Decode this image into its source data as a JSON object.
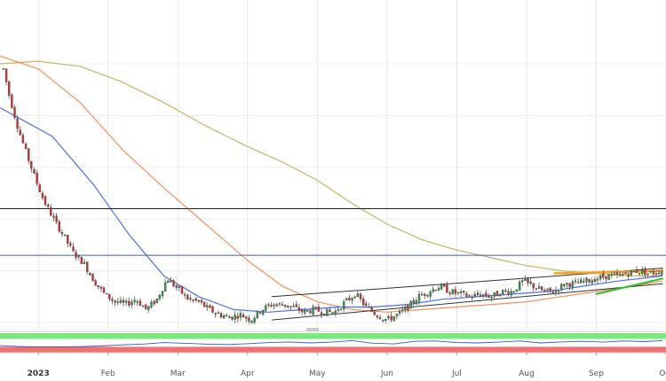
{
  "chart_data": {
    "type": "candlestick",
    "title": "",
    "xlabel": "",
    "ylabel": "",
    "x_tick_labels": [
      {
        "label": "2023",
        "month": 0,
        "bold": true
      },
      {
        "label": "Feb",
        "month": 1
      },
      {
        "label": "Mar",
        "month": 2
      },
      {
        "label": "Apr",
        "month": 3
      },
      {
        "label": "May",
        "month": 4
      },
      {
        "label": "Jun",
        "month": 5
      },
      {
        "label": "Jul",
        "month": 6
      },
      {
        "label": "Aug",
        "month": 7
      },
      {
        "label": "Sep",
        "month": 8
      },
      {
        "label": "Oct",
        "month": 9
      }
    ],
    "x_range_months": [
      -0.55,
      9.0
    ],
    "y_range": [
      0,
      100
    ],
    "grid": true,
    "colors": {
      "up": "#2f9e44",
      "down": "#d63031",
      "sma_fast": "#4a6fe3",
      "sma_mid": "#f0905a",
      "sma_slow": "#c4b560",
      "hline_black": "#222222",
      "hline_blue": "#3c5ea8",
      "trend_black": "#333333",
      "trend_orange": "#ff9f1c",
      "trend_green": "#2fbf2f",
      "rsi_line": "#3355cc",
      "overbought_band": "#7be87b",
      "oversold_band": "#f07070"
    },
    "price_path": [
      [
        -0.5,
        98
      ],
      [
        -0.42,
        88
      ],
      [
        -0.3,
        76
      ],
      [
        -0.18,
        66
      ],
      [
        -0.05,
        56
      ],
      [
        0.08,
        47
      ],
      [
        0.22,
        40
      ],
      [
        0.35,
        34
      ],
      [
        0.5,
        27
      ],
      [
        0.65,
        23
      ],
      [
        0.8,
        16
      ],
      [
        0.95,
        11
      ],
      [
        1.1,
        8
      ],
      [
        1.25,
        7
      ],
      [
        1.4,
        9
      ],
      [
        1.55,
        5
      ],
      [
        1.7,
        9
      ],
      [
        1.85,
        17
      ],
      [
        2.0,
        13
      ],
      [
        2.15,
        9
      ],
      [
        2.3,
        8
      ],
      [
        2.45,
        5
      ],
      [
        2.6,
        3
      ],
      [
        2.75,
        2
      ],
      [
        2.9,
        3
      ],
      [
        3.05,
        1
      ],
      [
        3.2,
        5
      ],
      [
        3.35,
        7
      ],
      [
        3.5,
        7
      ],
      [
        3.65,
        6
      ],
      [
        3.8,
        4
      ],
      [
        3.95,
        5
      ],
      [
        4.1,
        4
      ],
      [
        4.25,
        4
      ],
      [
        4.4,
        8
      ],
      [
        4.55,
        11
      ],
      [
        4.7,
        6
      ],
      [
        4.85,
        3
      ],
      [
        5.0,
        1
      ],
      [
        5.15,
        3
      ],
      [
        5.3,
        6
      ],
      [
        5.45,
        10
      ],
      [
        5.6,
        12
      ],
      [
        5.75,
        14
      ],
      [
        5.9,
        12
      ],
      [
        6.05,
        11
      ],
      [
        6.2,
        10
      ],
      [
        6.35,
        11
      ],
      [
        6.5,
        10
      ],
      [
        6.65,
        12
      ],
      [
        6.8,
        12
      ],
      [
        6.95,
        16
      ],
      [
        7.1,
        14
      ],
      [
        7.25,
        12
      ],
      [
        7.4,
        12
      ],
      [
        7.55,
        15
      ],
      [
        7.7,
        15
      ],
      [
        7.85,
        16
      ],
      [
        8.0,
        17
      ],
      [
        8.15,
        18
      ],
      [
        8.3,
        18
      ],
      [
        8.45,
        19
      ],
      [
        8.6,
        20
      ],
      [
        8.75,
        19
      ],
      [
        8.95,
        20
      ]
    ],
    "sma_fast": [
      [
        -0.55,
        83
      ],
      [
        0.2,
        72
      ],
      [
        0.8,
        53
      ],
      [
        1.3,
        34
      ],
      [
        1.8,
        18
      ],
      [
        2.3,
        10
      ],
      [
        2.8,
        5
      ],
      [
        3.3,
        4
      ],
      [
        3.8,
        5
      ],
      [
        4.3,
        6
      ],
      [
        4.8,
        6
      ],
      [
        5.3,
        7
      ],
      [
        5.8,
        9
      ],
      [
        6.3,
        10
      ],
      [
        6.8,
        11
      ],
      [
        7.3,
        12
      ],
      [
        7.8,
        14
      ],
      [
        8.3,
        16
      ],
      [
        8.95,
        18
      ]
    ],
    "sma_mid": [
      [
        -0.55,
        103
      ],
      [
        0,
        98
      ],
      [
        0.6,
        85
      ],
      [
        1.2,
        67
      ],
      [
        1.8,
        52
      ],
      [
        2.4,
        38
      ],
      [
        3.0,
        24
      ],
      [
        3.5,
        14
      ],
      [
        4.0,
        8
      ],
      [
        4.5,
        5
      ],
      [
        5.0,
        4
      ],
      [
        5.5,
        5
      ],
      [
        6.0,
        6
      ],
      [
        6.5,
        7
      ],
      [
        7.0,
        8
      ],
      [
        7.5,
        10
      ],
      [
        8.0,
        12
      ],
      [
        8.5,
        14
      ],
      [
        8.95,
        16
      ]
    ],
    "sma_slow": [
      [
        -0.55,
        100
      ],
      [
        0,
        101
      ],
      [
        0.6,
        99
      ],
      [
        1.2,
        93
      ],
      [
        1.8,
        85
      ],
      [
        2.4,
        76
      ],
      [
        3.0,
        68
      ],
      [
        3.5,
        62
      ],
      [
        4.0,
        55
      ],
      [
        4.5,
        46
      ],
      [
        5.0,
        38
      ],
      [
        5.5,
        32
      ],
      [
        6.0,
        28
      ],
      [
        6.5,
        25
      ],
      [
        7.0,
        22
      ],
      [
        7.5,
        20
      ],
      [
        8.0,
        19
      ],
      [
        8.5,
        18
      ],
      [
        8.95,
        18
      ]
    ],
    "horizontal_levels": [
      {
        "y": 44,
        "color_key": "hline_black"
      },
      {
        "y": 26,
        "color_key": "hline_blue"
      }
    ],
    "trend_lines": [
      {
        "points": [
          [
            3.35,
            10
          ],
          [
            8.95,
            21
          ]
        ],
        "color_key": "trend_black",
        "width": 1
      },
      {
        "points": [
          [
            3.35,
            1
          ],
          [
            8.95,
            15
          ]
        ],
        "color_key": "trend_black",
        "width": 1
      },
      {
        "points": [
          [
            7.4,
            19
          ],
          [
            8.95,
            20
          ]
        ],
        "color_key": "trend_orange",
        "width": 2.5
      },
      {
        "points": [
          [
            8.0,
            11
          ],
          [
            8.95,
            17
          ]
        ],
        "color_key": "trend_green",
        "width": 2
      }
    ],
    "rsi": {
      "range": [
        0,
        100
      ],
      "overbought_band": [
        70,
        100
      ],
      "oversold_band": [
        0,
        30
      ],
      "values": [
        [
          -0.55,
          36
        ],
        [
          -0.4,
          33
        ],
        [
          -0.2,
          31
        ],
        [
          0,
          30
        ],
        [
          0.3,
          30
        ],
        [
          0.6,
          31
        ],
        [
          0.9,
          34
        ],
        [
          1.2,
          40
        ],
        [
          1.5,
          44
        ],
        [
          1.8,
          52
        ],
        [
          2.1,
          48
        ],
        [
          2.4,
          44
        ],
        [
          2.7,
          42
        ],
        [
          3.0,
          46
        ],
        [
          3.3,
          52
        ],
        [
          3.6,
          55
        ],
        [
          3.9,
          50
        ],
        [
          4.2,
          54
        ],
        [
          4.5,
          62
        ],
        [
          4.8,
          48
        ],
        [
          5.1,
          45
        ],
        [
          5.4,
          58
        ],
        [
          5.7,
          60
        ],
        [
          6.0,
          52
        ],
        [
          6.3,
          50
        ],
        [
          6.6,
          54
        ],
        [
          6.9,
          60
        ],
        [
          7.2,
          50
        ],
        [
          7.5,
          55
        ],
        [
          7.8,
          58
        ],
        [
          8.1,
          54
        ],
        [
          8.4,
          60
        ],
        [
          8.7,
          57
        ],
        [
          8.95,
          62
        ]
      ]
    }
  }
}
